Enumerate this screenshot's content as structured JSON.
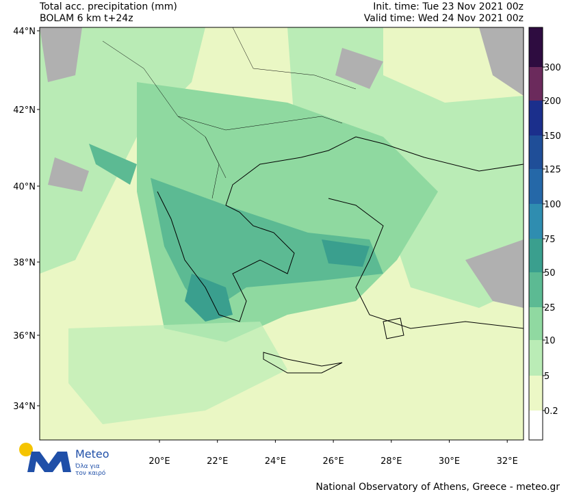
{
  "header": {
    "title": "Total acc. precipitation (mm)",
    "model": "BOLAM 6 km t+24z",
    "init_time": "Init. time: Tue 23 Nov 2021 00z",
    "valid_time": "Valid time: Wed 24 Nov 2021 00z"
  },
  "lat_labels": [
    "44°N",
    "42°N",
    "40°N",
    "38°N",
    "36°N",
    "34°N"
  ],
  "lon_labels": [
    "20°E",
    "22°E",
    "24°E",
    "26°E",
    "28°E",
    "30°E",
    "32°E"
  ],
  "colorbar": {
    "labels": [
      "300",
      "200",
      "150",
      "125",
      "100",
      "75",
      "50",
      "25",
      "10",
      "5",
      "0.2"
    ],
    "colors": [
      "#2e0c40",
      "#6b2a5c",
      "#1b2f8c",
      "#1f4e98",
      "#2568a8",
      "#2f8db0",
      "#3a9f8e",
      "#5cba93",
      "#90d9a1",
      "#baecb6",
      "#ecf8c6",
      "#ffffff"
    ]
  },
  "logo": {
    "name": "Meteo",
    "tagline_1": "Όλα για",
    "tagline_2": "τον καιρό"
  },
  "footer": "National Observatory of Athens, Greece - meteo.gr"
}
